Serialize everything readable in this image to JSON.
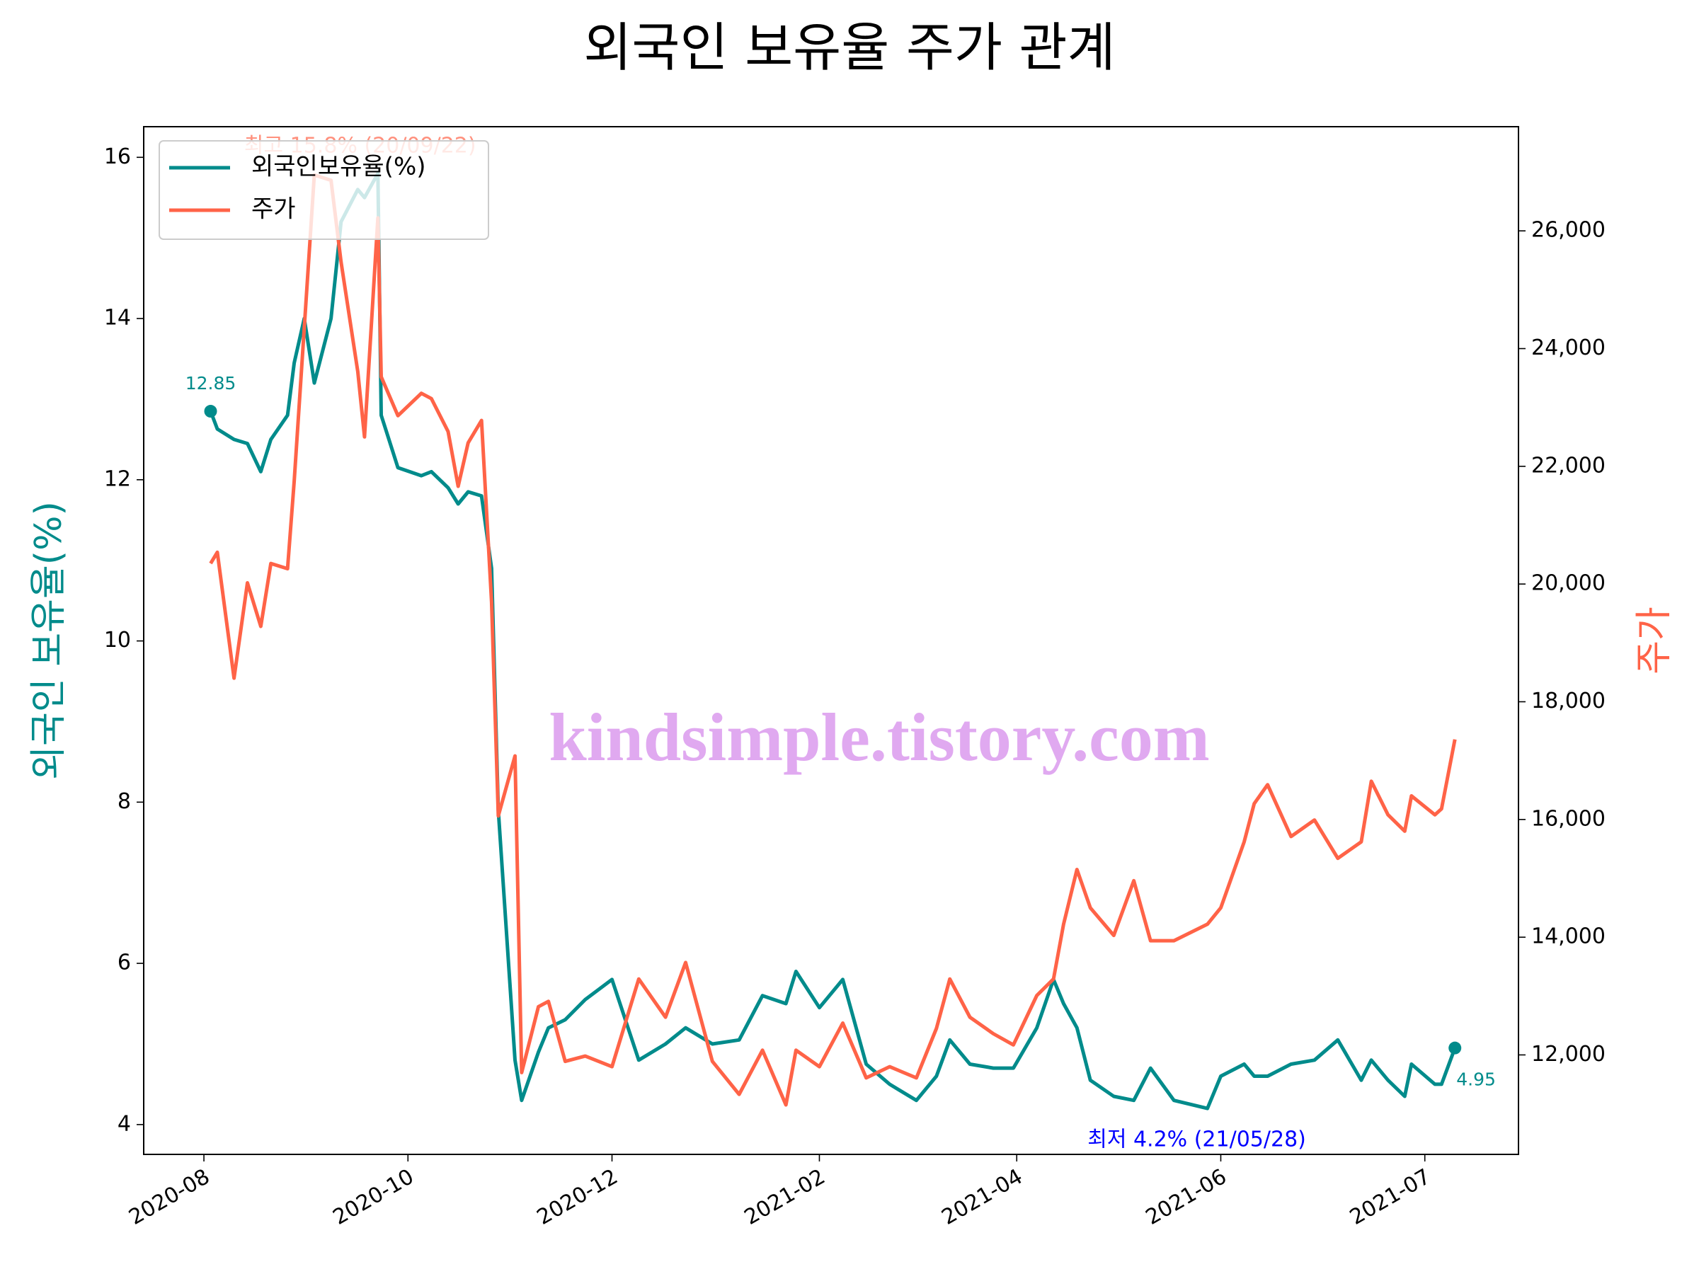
{
  "chart_data": {
    "type": "line",
    "title": "외국인 보유율 주가 관계",
    "ylabel": "외국인 보유율(%)",
    "y2label": "주가",
    "watermark": "kindsimple.tistory.com",
    "x": [
      "2020-08-03",
      "2020-08-05",
      "2020-08-10",
      "2020-08-14",
      "2020-08-18",
      "2020-08-21",
      "2020-08-26",
      "2020-08-28",
      "2020-08-31",
      "2020-09-03",
      "2020-09-08",
      "2020-09-11",
      "2020-09-16",
      "2020-09-18",
      "2020-09-22",
      "2020-09-23",
      "2020-09-28",
      "2020-10-05",
      "2020-10-08",
      "2020-10-13",
      "2020-10-16",
      "2020-10-19",
      "2020-10-23",
      "2020-10-26",
      "2020-10-28",
      "2020-11-02",
      "2020-11-04",
      "2020-11-09",
      "2020-11-12",
      "2020-11-17",
      "2020-11-23",
      "2020-12-01",
      "2020-12-09",
      "2020-12-17",
      "2020-12-23",
      "2020-12-31",
      "2021-01-08",
      "2021-01-15",
      "2021-01-22",
      "2021-01-25",
      "2021-02-01",
      "2021-02-08",
      "2021-02-15",
      "2021-02-22",
      "2021-03-02",
      "2021-03-08",
      "2021-03-12",
      "2021-03-18",
      "2021-03-25",
      "2021-03-31",
      "2021-04-07",
      "2021-04-12",
      "2021-04-15",
      "2021-04-19",
      "2021-04-23",
      "2021-04-30",
      "2021-05-06",
      "2021-05-11",
      "2021-05-18",
      "2021-05-28",
      "2021-06-01",
      "2021-06-08",
      "2021-06-11",
      "2021-06-15",
      "2021-06-22",
      "2021-06-29",
      "2021-07-06",
      "2021-07-13",
      "2021-07-16",
      "2021-07-21",
      "2021-07-26",
      "2021-07-28",
      "2021-08-04",
      "2021-08-06",
      "2021-08-10"
    ],
    "series": [
      {
        "name": "외국인보유율(%)",
        "color": "#008b8b",
        "axis": "y",
        "values": [
          12.85,
          12.63,
          12.5,
          12.45,
          12.1,
          12.5,
          12.8,
          13.45,
          14.0,
          13.2,
          14.0,
          15.2,
          15.6,
          15.5,
          15.8,
          12.8,
          12.15,
          12.05,
          12.1,
          11.9,
          11.7,
          11.85,
          11.8,
          10.9,
          7.9,
          4.8,
          4.3,
          4.9,
          5.2,
          5.3,
          5.55,
          5.8,
          4.8,
          5.0,
          5.2,
          5.0,
          5.05,
          5.6,
          5.5,
          5.9,
          5.45,
          5.8,
          4.75,
          4.5,
          4.3,
          4.6,
          5.05,
          4.75,
          4.7,
          4.7,
          5.2,
          5.8,
          5.5,
          5.2,
          4.55,
          4.35,
          4.3,
          4.7,
          4.3,
          4.2,
          4.6,
          4.75,
          4.6,
          4.6,
          4.75,
          4.8,
          5.05,
          4.55,
          4.8,
          4.55,
          4.35,
          4.75,
          4.5,
          4.5,
          4.95
        ]
      },
      {
        "name": "주가",
        "color": "#ff6347",
        "axis": "y2",
        "values": [
          20350,
          20540,
          18400,
          20020,
          19280,
          20350,
          20260,
          21750,
          24350,
          26950,
          26860,
          25470,
          23610,
          22500,
          26220,
          23520,
          22860,
          23240,
          23150,
          22590,
          21660,
          22400,
          22780,
          19690,
          16060,
          17080,
          11700,
          12820,
          12910,
          11890,
          11980,
          11800,
          13290,
          12640,
          13570,
          11890,
          11330,
          12080,
          11150,
          12080,
          11800,
          12540,
          11610,
          11800,
          11610,
          12450,
          13290,
          12640,
          12360,
          12170,
          13010,
          13290,
          14220,
          15150,
          14500,
          14030,
          14960,
          13940,
          13940,
          14220,
          14500,
          15620,
          16270,
          16590,
          15710,
          15990,
          15340,
          15620,
          16650,
          16080,
          15800,
          16400,
          16080,
          16180,
          17360
        ]
      }
    ],
    "annotations": [
      {
        "text": "최고 15.8% (20/09/22)",
        "color": "#ff6347"
      },
      {
        "text": "최저 4.2% (21/05/28)",
        "color": "#0000ff"
      }
    ],
    "xlim": [
      "2020-07-14",
      "2021-08-29"
    ],
    "xticks": [
      "2020-08",
      "2020-10",
      "2020-12",
      "2021-02",
      "2021-04",
      "2021-06",
      {
        "value": "2021-08",
        "label": "2021-07"
      }
    ],
    "ylim": [
      3.63,
      16.38
    ],
    "yticks": [
      4,
      6,
      8,
      10,
      12,
      14,
      16
    ],
    "y2lim": [
      10310,
      27770
    ],
    "y2ticks": [
      {
        "value": 12000,
        "label": "12,000"
      },
      {
        "value": 14000,
        "label": "14,000"
      },
      {
        "value": 16000,
        "label": "16,000"
      },
      {
        "value": 18000,
        "label": "18,000"
      },
      {
        "value": 20000,
        "label": "20,000"
      },
      {
        "value": 22000,
        "label": "22,000"
      },
      {
        "value": 24000,
        "label": "24,000"
      },
      {
        "value": 26000,
        "label": "26,000"
      }
    ],
    "legend": "upper left"
  }
}
